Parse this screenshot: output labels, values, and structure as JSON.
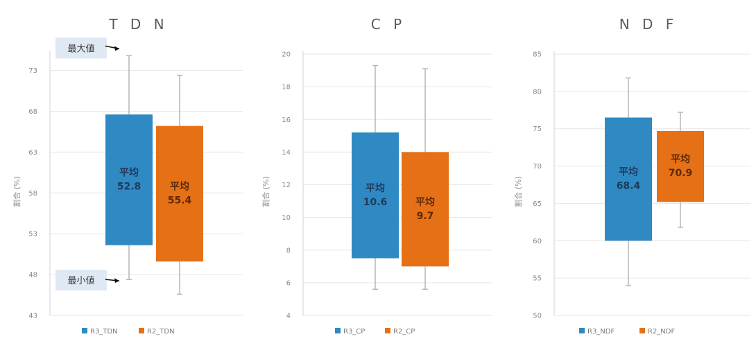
{
  "chart_data": [
    {
      "type": "box",
      "title": "T D N",
      "ylabel": "割合 (%)",
      "ylim": [
        43,
        75
      ],
      "yticks": [
        43,
        48,
        53,
        58,
        63,
        68,
        73
      ],
      "series": [
        {
          "name": "R3_TDN",
          "color": "#2f8ac4",
          "min": 47.4,
          "q1": 51.6,
          "q3": 67.6,
          "max": 74.8,
          "mean_label": "平均",
          "mean_value": "52.8"
        },
        {
          "name": "R2_TDN",
          "color": "#e67016",
          "min": 45.6,
          "q1": 49.6,
          "q3": 66.2,
          "max": 72.4,
          "mean_label": "平均",
          "mean_value": "55.4"
        }
      ],
      "annotations": [
        {
          "text": "最大値",
          "at": 74.8
        },
        {
          "text": "最小値",
          "at": 47.4
        }
      ]
    },
    {
      "type": "box",
      "title": "C P",
      "ylabel": "割合 (%)",
      "ylim": [
        4,
        20
      ],
      "yticks": [
        4,
        6,
        8,
        10,
        12,
        14,
        16,
        18,
        20
      ],
      "series": [
        {
          "name": "R3_CP",
          "color": "#2f8ac4",
          "min": 5.6,
          "q1": 7.5,
          "q3": 15.2,
          "max": 19.3,
          "mean_label": "平均",
          "mean_value": "10.6"
        },
        {
          "name": "R2_CP",
          "color": "#e67016",
          "min": 5.6,
          "q1": 7.0,
          "q3": 14.0,
          "max": 19.1,
          "mean_label": "平均",
          "mean_value": "9.7"
        }
      ]
    },
    {
      "type": "box",
      "title": "N D F",
      "ylabel": "割合 (%)",
      "ylim": [
        50,
        85
      ],
      "yticks": [
        50,
        55,
        60,
        65,
        70,
        75,
        80,
        85
      ],
      "series": [
        {
          "name": "R3_NDF",
          "color": "#2f8ac4",
          "min": 54.0,
          "q1": 60.0,
          "q3": 76.5,
          "max": 81.8,
          "mean_label": "平均",
          "mean_value": "68.4"
        },
        {
          "name": "R2_NDF",
          "color": "#e67016",
          "min": 61.8,
          "q1": 65.2,
          "q3": 74.7,
          "max": 77.2,
          "mean_label": "平均",
          "mean_value": "70.9"
        }
      ]
    }
  ]
}
